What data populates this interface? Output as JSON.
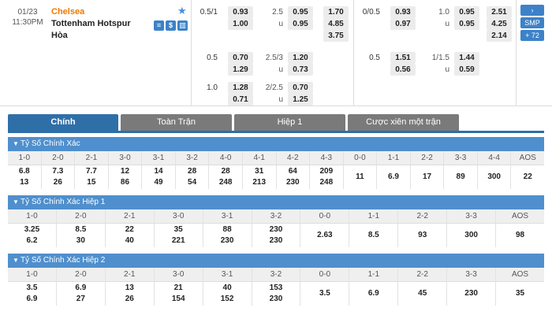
{
  "match": {
    "date": "01/23",
    "time": "11:30PM",
    "home": "Chelsea",
    "away": "Tottenham Hotspur",
    "draw": "Hòa",
    "icons": [
      "≡",
      "$",
      "▥"
    ]
  },
  "ft_odds": {
    "hdp_rows": [
      {
        "line": "0.5/1",
        "home": "0.93",
        "away": "1.00"
      },
      {
        "line": "0.5",
        "home": "0.70",
        "away": "1.29"
      },
      {
        "line": "1.0",
        "home": "1.28",
        "away": "0.71"
      }
    ],
    "ou_rows": [
      {
        "line": "2.5",
        "over": "0.95",
        "u": "u",
        "under": "0.95"
      },
      {
        "line": "2.5/3",
        "over": "1.20",
        "u": "u",
        "under": "0.73"
      },
      {
        "line": "2/2.5",
        "over": "0.70",
        "u": "u",
        "under": "1.25"
      }
    ],
    "x12": [
      "1.70",
      "4.85",
      "3.75"
    ]
  },
  "ht_odds": {
    "hdp_rows": [
      {
        "line": "0/0.5",
        "home": "0.93",
        "away": "0.97"
      },
      {
        "line": "0.5",
        "home": "1.51",
        "away": "0.56"
      }
    ],
    "ou_rows": [
      {
        "line": "1.0",
        "over": "0.95",
        "u": "u",
        "under": "0.95"
      },
      {
        "line": "1/1.5",
        "over": "1.44",
        "u": "u",
        "under": "0.59"
      }
    ],
    "x12": [
      "2.51",
      "4.25",
      "2.14"
    ]
  },
  "side_buttons": {
    "arrow": "›",
    "smp": "SMP",
    "more": "+ 72"
  },
  "tabs": [
    "Chính",
    "Toàn Trận",
    "Hiệp 1",
    "Cược xiên một trận"
  ],
  "sections": [
    {
      "title": "Tỷ Số Chính Xác",
      "cols": [
        {
          "h": "1-0",
          "v": [
            "6.8",
            "13"
          ]
        },
        {
          "h": "2-0",
          "v": [
            "7.3",
            "26"
          ]
        },
        {
          "h": "2-1",
          "v": [
            "7.7",
            "15"
          ]
        },
        {
          "h": "3-0",
          "v": [
            "12",
            "86"
          ]
        },
        {
          "h": "3-1",
          "v": [
            "14",
            "49"
          ]
        },
        {
          "h": "3-2",
          "v": [
            "28",
            "54"
          ]
        },
        {
          "h": "4-0",
          "v": [
            "28",
            "248"
          ]
        },
        {
          "h": "4-1",
          "v": [
            "31",
            "213"
          ]
        },
        {
          "h": "4-2",
          "v": [
            "64",
            "230"
          ]
        },
        {
          "h": "4-3",
          "v": [
            "209",
            "248"
          ]
        },
        {
          "h": "0-0",
          "v": [
            "11"
          ]
        },
        {
          "h": "1-1",
          "v": [
            "6.9"
          ]
        },
        {
          "h": "2-2",
          "v": [
            "17"
          ]
        },
        {
          "h": "3-3",
          "v": [
            "89"
          ]
        },
        {
          "h": "4-4",
          "v": [
            "300"
          ]
        },
        {
          "h": "AOS",
          "v": [
            "22"
          ]
        }
      ]
    },
    {
      "title": "Tỷ Số Chính Xác Hiệp 1",
      "cols": [
        {
          "h": "1-0",
          "v": [
            "3.25",
            "6.2"
          ]
        },
        {
          "h": "2-0",
          "v": [
            "8.5",
            "30"
          ]
        },
        {
          "h": "2-1",
          "v": [
            "22",
            "40"
          ]
        },
        {
          "h": "3-0",
          "v": [
            "35",
            "221"
          ]
        },
        {
          "h": "3-1",
          "v": [
            "88",
            "230"
          ]
        },
        {
          "h": "3-2",
          "v": [
            "230",
            "230"
          ]
        },
        {
          "h": "0-0",
          "v": [
            "2.63"
          ]
        },
        {
          "h": "1-1",
          "v": [
            "8.5"
          ]
        },
        {
          "h": "2-2",
          "v": [
            "93"
          ]
        },
        {
          "h": "3-3",
          "v": [
            "300"
          ]
        },
        {
          "h": "AOS",
          "v": [
            "98"
          ]
        }
      ]
    },
    {
      "title": "Tỷ Số Chính Xác Hiệp 2",
      "cols": [
        {
          "h": "1-0",
          "v": [
            "3.5",
            "6.9"
          ]
        },
        {
          "h": "2-0",
          "v": [
            "6.9",
            "27"
          ]
        },
        {
          "h": "2-1",
          "v": [
            "13",
            "26"
          ]
        },
        {
          "h": "3-0",
          "v": [
            "21",
            "154"
          ]
        },
        {
          "h": "3-1",
          "v": [
            "40",
            "152"
          ]
        },
        {
          "h": "3-2",
          "v": [
            "153",
            "230"
          ]
        },
        {
          "h": "0-0",
          "v": [
            "3.5"
          ]
        },
        {
          "h": "1-1",
          "v": [
            "6.9"
          ]
        },
        {
          "h": "2-2",
          "v": [
            "45"
          ]
        },
        {
          "h": "3-3",
          "v": [
            "230"
          ]
        },
        {
          "h": "AOS",
          "v": [
            "35"
          ]
        }
      ]
    }
  ]
}
